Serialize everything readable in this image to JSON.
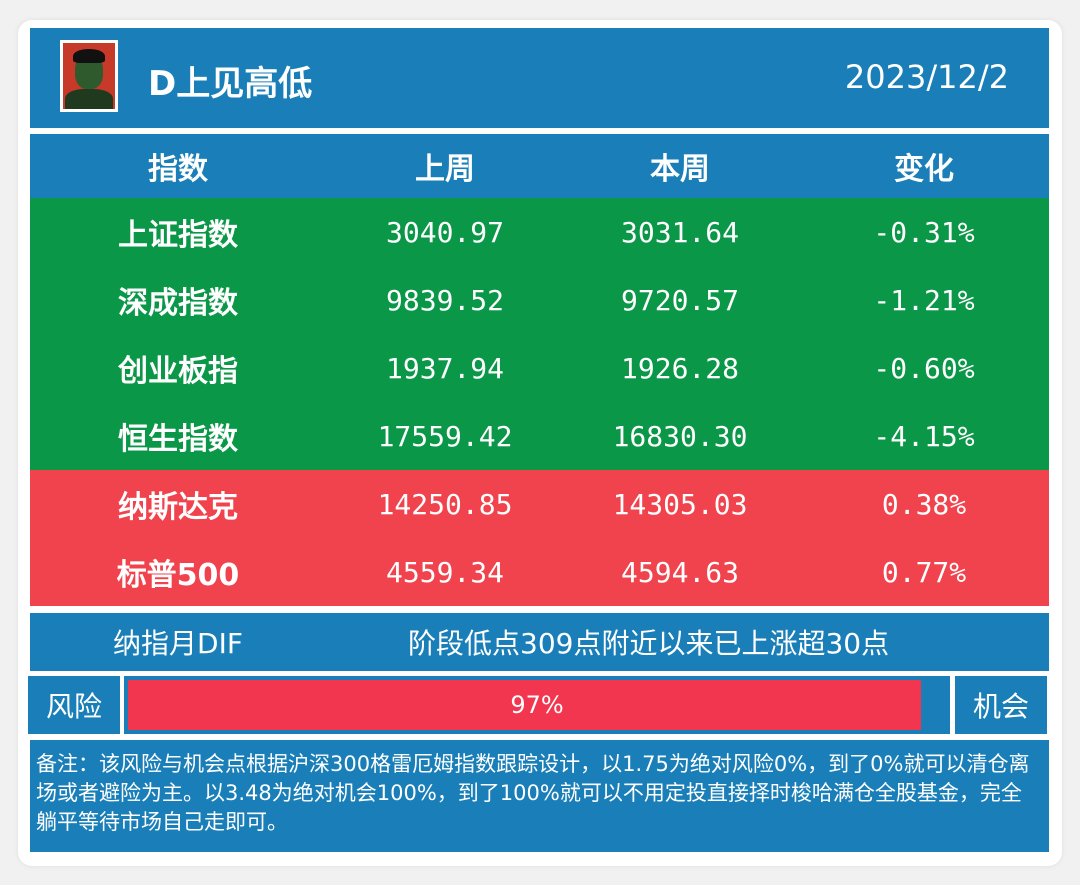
{
  "header": {
    "title": "D上见高低",
    "date": "2023/12/2"
  },
  "table": {
    "columns": [
      "指数",
      "上周",
      "本周",
      "变化"
    ],
    "rows": [
      {
        "name": "上证指数",
        "prev": "3040.97",
        "curr": "3031.64",
        "change": "-0.31%",
        "trend": "down"
      },
      {
        "name": "深成指数",
        "prev": "9839.52",
        "curr": "9720.57",
        "change": "-1.21%",
        "trend": "down"
      },
      {
        "name": "创业板指",
        "prev": "1937.94",
        "curr": "1926.28",
        "change": "-0.60%",
        "trend": "down"
      },
      {
        "name": "恒生指数",
        "prev": "17559.42",
        "curr": "16830.30",
        "change": "-4.15%",
        "trend": "down"
      },
      {
        "name": "纳斯达克",
        "prev": "14250.85",
        "curr": "14305.03",
        "change": "0.38%",
        "trend": "up"
      },
      {
        "name": "标普500",
        "prev": "4559.34",
        "curr": "4594.63",
        "change": "0.77%",
        "trend": "up"
      }
    ]
  },
  "dif": {
    "label": "纳指月DIF",
    "text": "阶段低点309点附近以来已上涨超30点"
  },
  "gauge": {
    "left_label": "风险",
    "right_label": "机会",
    "value_text": "97%",
    "fill_fraction": 0.97
  },
  "remark": {
    "text": "备注：该风险与机会点根据沪深300格雷厄姆指数跟踪设计，以1.75为绝对风险0%，到了0%就可以清仓离场或者避险为主。以3.48为绝对机会100%，到了100%就可以不用定投直接择时梭哈满仓全股基金，完全躺平等待市场自己走即可。"
  },
  "colors": {
    "header_blue": "#1a7fb8",
    "down_green": "#0b9748",
    "up_red": "#f0434d",
    "gauge_fill": "#f2364f"
  }
}
